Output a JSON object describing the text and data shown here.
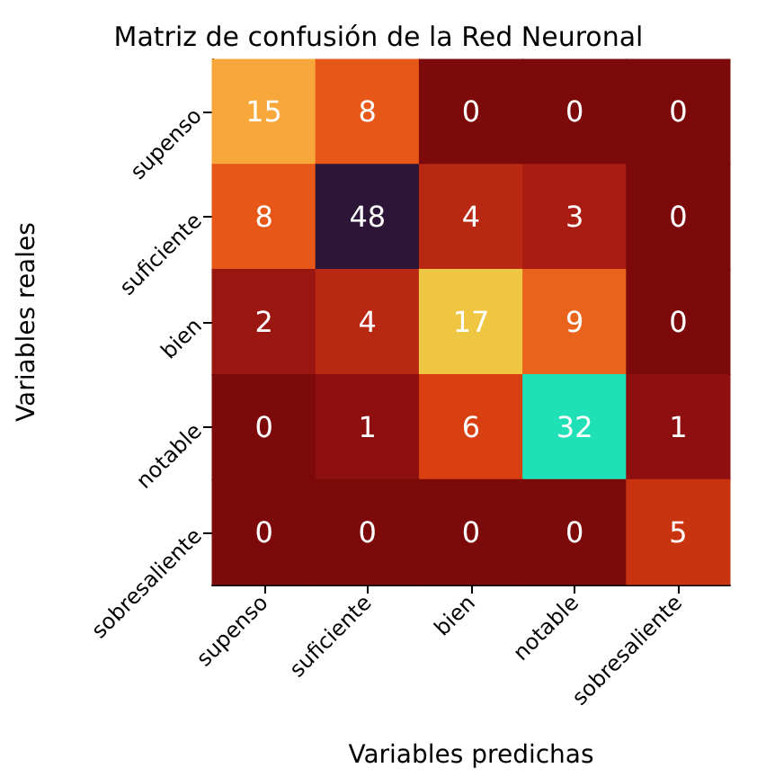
{
  "chart_data": {
    "type": "heatmap",
    "title": "Matriz de confusión de la Red Neuronal",
    "xlabel": "Variables predichas",
    "ylabel": "Variables reales",
    "categories": [
      "supenso",
      "suficiente",
      "bien",
      "notable",
      "sobresaliente"
    ],
    "y_categories": [
      "supenso",
      "suficiente",
      "bien",
      "notable",
      "sobresaliente"
    ],
    "cells": [
      [
        15,
        8,
        0,
        0,
        0
      ],
      [
        8,
        48,
        4,
        3,
        0
      ],
      [
        2,
        4,
        17,
        9,
        0
      ],
      [
        0,
        1,
        6,
        32,
        1
      ],
      [
        0,
        0,
        0,
        0,
        5
      ]
    ],
    "data_labels": true
  }
}
